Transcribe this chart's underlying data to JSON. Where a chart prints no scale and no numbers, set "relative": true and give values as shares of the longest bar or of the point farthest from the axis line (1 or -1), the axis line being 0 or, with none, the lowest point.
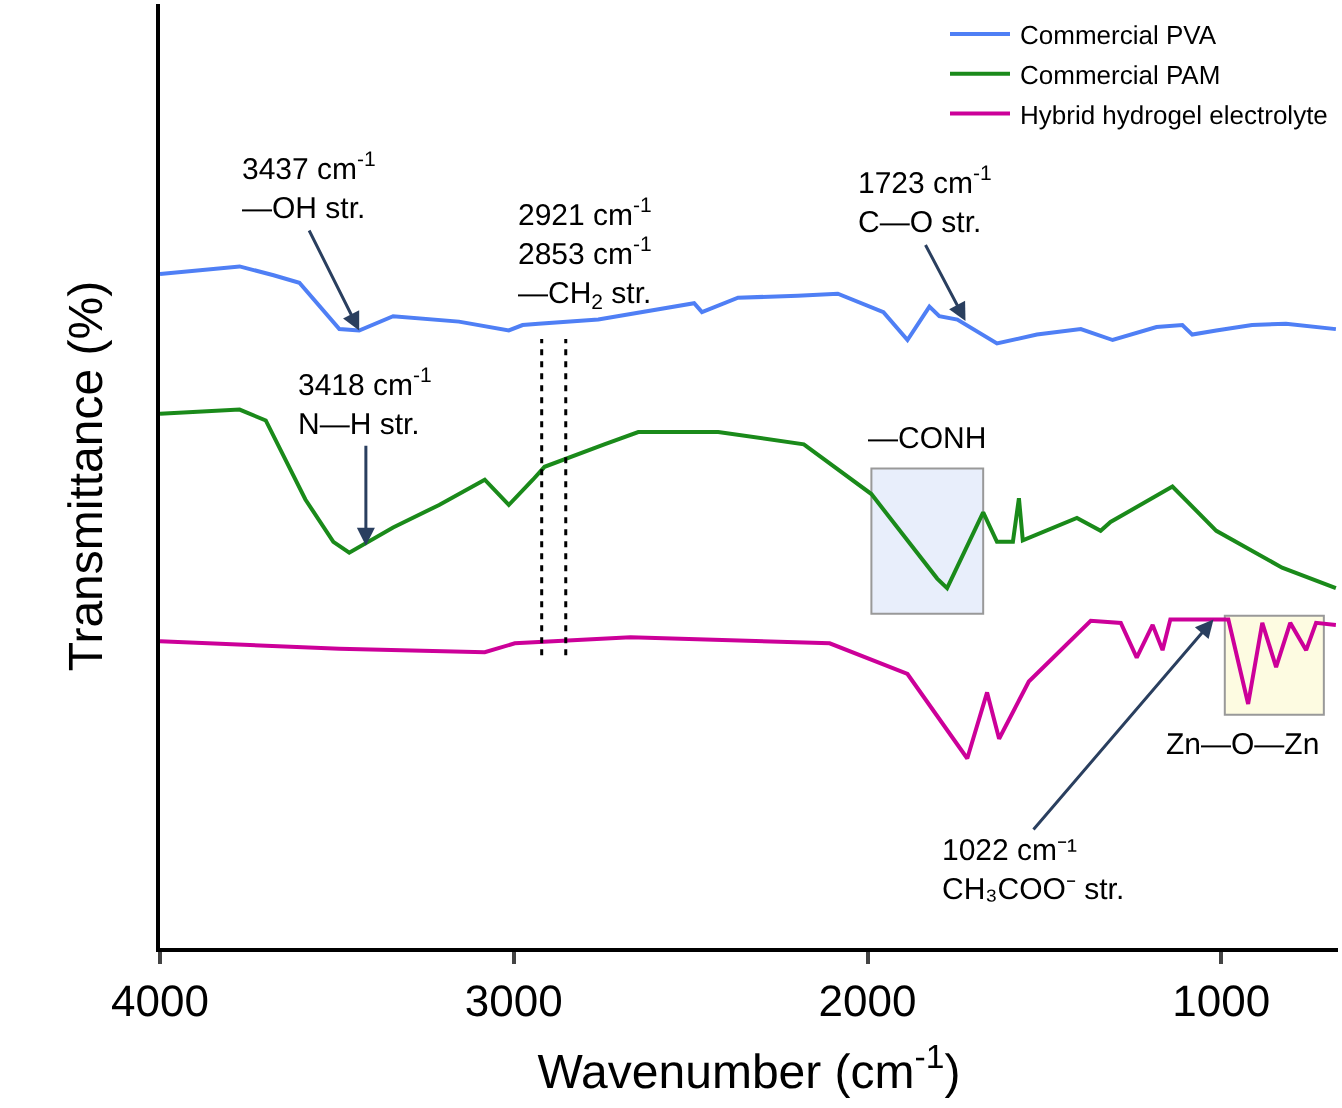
{
  "chart_data": {
    "type": "line",
    "relative": true,
    "xlabel": "Wavenumber (cm$^{-1}$)",
    "ylabel": "Transmittance (%)",
    "xlim": [
      4000,
      670
    ],
    "xticks": [
      4000,
      3000,
      2000,
      1000
    ],
    "grid": false,
    "legend": "top right",
    "marker": "none",
    "line_style": "solid",
    "series": [
      {
        "name": "Commercial PVA",
        "color": "#4f7ff5",
        "x": [
          4000,
          3775,
          3679,
          3606,
          3493,
          3437,
          3341,
          3155,
          3014,
          2975,
          2930,
          2761,
          2490,
          2468,
          2366,
          2197,
          2084,
          1955,
          1887,
          1825,
          1797,
          1746,
          1634,
          1521,
          1397,
          1307,
          1183,
          1110,
          1082,
          1014,
          913,
          817,
          676
        ],
        "values": [
          0.989,
          1.0,
          0.987,
          0.976,
          0.908,
          0.906,
          0.927,
          0.919,
          0.906,
          0.914,
          0.916,
          0.922,
          0.946,
          0.933,
          0.954,
          0.957,
          0.96,
          0.933,
          0.892,
          0.941,
          0.927,
          0.922,
          0.887,
          0.9,
          0.908,
          0.892,
          0.911,
          0.914,
          0.9,
          0.906,
          0.914,
          0.916,
          0.908
        ]
      },
      {
        "name": "Commercial PAM",
        "color": "#1a8a1a",
        "x": [
          4000,
          3775,
          3701,
          3589,
          3510,
          3465,
          3341,
          3211,
          3082,
          3014,
          2946,
          2913,
          2744,
          2648,
          2490,
          2422,
          2180,
          1989,
          1803,
          1775,
          1673,
          1634,
          1589,
          1572,
          1561,
          1408,
          1341,
          1313,
          1138,
          1014,
          828,
          676
        ],
        "values": [
          0.784,
          0.79,
          0.774,
          0.658,
          0.596,
          0.58,
          0.617,
          0.65,
          0.687,
          0.65,
          0.687,
          0.706,
          0.739,
          0.757,
          0.757,
          0.757,
          0.739,
          0.666,
          0.542,
          0.528,
          0.639,
          0.596,
          0.596,
          0.66,
          0.598,
          0.631,
          0.612,
          0.625,
          0.677,
          0.612,
          0.558,
          0.528
        ]
      },
      {
        "name": "Hybrid hydrogel electrolyte",
        "color": "#cc0099",
        "x": [
          4000,
          3493,
          3082,
          2997,
          2670,
          2107,
          1887,
          1718,
          1662,
          1628,
          1544,
          1369,
          1284,
          1239,
          1194,
          1166,
          1144,
          980,
          924,
          884,
          845,
          805,
          760,
          732,
          676
        ],
        "values": [
          0.45,
          0.439,
          0.434,
          0.447,
          0.456,
          0.447,
          0.402,
          0.278,
          0.375,
          0.307,
          0.391,
          0.48,
          0.477,
          0.426,
          0.474,
          0.437,
          0.482,
          0.482,
          0.358,
          0.477,
          0.412,
          0.477,
          0.437,
          0.477,
          0.474
        ]
      }
    ],
    "ref_lines": [
      {
        "axis": "x",
        "value": 2921,
        "color": "#000000",
        "line_style": "dotted"
      },
      {
        "axis": "x",
        "value": 2853,
        "color": "#000000",
        "line_style": "dotted"
      }
    ],
    "bands": [
      {
        "axis": "x",
        "from": 1989,
        "to": 1673,
        "label": "—CONH",
        "color": "#e8eefb"
      },
      {
        "axis": "x",
        "from": 990,
        "to": 710,
        "label": "Zn—O—Zn",
        "color": "#fdfbe1"
      }
    ],
    "annotations": [
      {
        "text": "3437 cm$^{-1}$\n—OH str.",
        "x": 3437,
        "y": 0.906
      },
      "2921 cm$^{-1}$\n2853 cm$^{-1}$\n—CH$_{2}$ str.",
      {
        "text": "1723 cm$^{-1}$\nC—O str.",
        "x": 1723,
        "y": 0.92
      },
      {
        "text": "3418 cm$^{-1}$\nN—H str.",
        "x": 3418,
        "y": 0.59
      },
      {
        "text": "1022 cm⁻¹\nCH₃COO⁻ str.",
        "x": 1022,
        "y": 0.482
      }
    ]
  }
}
